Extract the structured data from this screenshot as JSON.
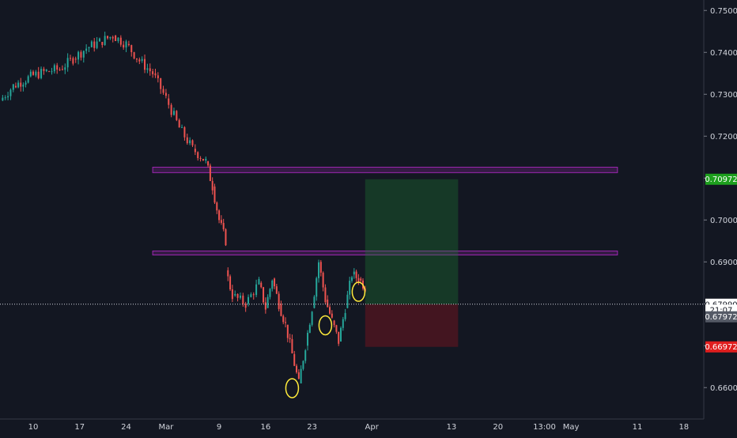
{
  "chart_data": {
    "type": "candlestick",
    "title": "",
    "xlabel": "",
    "ylabel": "",
    "ylim": [
      0.6525,
      0.7525
    ],
    "x_range": [
      "2020-02-05",
      "2020-05-21"
    ],
    "grid": false,
    "y_ticks": [
      "0.75000",
      "0.74000",
      "0.73000",
      "0.72000",
      "0.71000",
      "0.70000",
      "0.69000",
      "0.68000",
      "0.67000",
      "0.66000"
    ],
    "x_ticks": [
      {
        "label": "10",
        "date": "2020-02-10"
      },
      {
        "label": "17",
        "date": "2020-02-17"
      },
      {
        "label": "24",
        "date": "2020-02-24"
      },
      {
        "label": "Mar",
        "date": "2020-03-01"
      },
      {
        "label": "9",
        "date": "2020-03-09"
      },
      {
        "label": "16",
        "date": "2020-03-16"
      },
      {
        "label": "23",
        "date": "2020-03-23"
      },
      {
        "label": "Apr",
        "date": "2020-04-01"
      },
      {
        "label": "13",
        "date": "2020-04-13"
      },
      {
        "label": "20",
        "date": "2020-04-20"
      },
      {
        "label": "13:00",
        "date": "2020-04-27"
      },
      {
        "label": "May",
        "date": "2020-05-01"
      },
      {
        "label": "11",
        "date": "2020-05-11"
      },
      {
        "label": "18",
        "date": "2020-05-18"
      }
    ],
    "series": [
      {
        "values": [
          [
            "2020-02-05",
            0.7285,
            0.732
          ],
          [
            "2020-02-07",
            0.732,
            0.7345
          ],
          [
            "2020-02-10",
            0.7345,
            0.7355
          ],
          [
            "2020-02-12",
            0.7355,
            0.736
          ],
          [
            "2020-02-14",
            0.736,
            0.7385
          ],
          [
            "2020-02-16",
            0.7385,
            0.741
          ],
          [
            "2020-02-18",
            0.741,
            0.7425
          ],
          [
            "2020-02-20",
            0.7425,
            0.744
          ],
          [
            "2020-02-22",
            0.744,
            0.742
          ],
          [
            "2020-02-24",
            0.742,
            0.738
          ],
          [
            "2020-02-26",
            0.738,
            0.735
          ],
          [
            "2020-02-28",
            0.735,
            0.729
          ],
          [
            "2020-03-01",
            0.729,
            0.722
          ],
          [
            "2020-03-03",
            0.722,
            0.717
          ],
          [
            "2020-03-05",
            0.717,
            0.714
          ],
          [
            "2020-03-07",
            0.714,
            0.708
          ],
          [
            "2020-03-08",
            0.708,
            0.7
          ],
          [
            "2020-03-09",
            0.7,
            0.695
          ],
          [
            "2020-03-10",
            0.688,
            0.682
          ],
          [
            "2020-03-11",
            0.682,
            0.68
          ],
          [
            "2020-03-13",
            0.68,
            0.685
          ],
          [
            "2020-03-15",
            0.685,
            0.679
          ],
          [
            "2020-03-16",
            0.679,
            0.686
          ],
          [
            "2020-03-17",
            0.686,
            0.68
          ],
          [
            "2020-03-18",
            0.68,
            0.675
          ],
          [
            "2020-03-19",
            0.675,
            0.668
          ],
          [
            "2020-03-20",
            0.668,
            0.661
          ],
          [
            "2020-03-21",
            0.661,
            0.67
          ],
          [
            "2020-03-22",
            0.67,
            0.679
          ],
          [
            "2020-03-23",
            0.679,
            0.69
          ],
          [
            "2020-03-24",
            0.69,
            0.681
          ],
          [
            "2020-03-25",
            0.681,
            0.676
          ],
          [
            "2020-03-26",
            0.676,
            0.671
          ],
          [
            "2020-03-27",
            0.671,
            0.679
          ],
          [
            "2020-03-28",
            0.679,
            0.687
          ],
          [
            "2020-03-29",
            0.687,
            0.686
          ],
          [
            "2020-03-30",
            0.686,
            0.684
          ],
          [
            "2020-03-31",
            0.684,
            0.68
          ]
        ]
      }
    ],
    "zones": [
      {
        "type": "resistance",
        "y_low": 0.7113,
        "y_high": 0.7126,
        "x_start": "2020-02-28",
        "x_end": "2020-05-08"
      },
      {
        "type": "support",
        "y_low": 0.692,
        "y_high": 0.6926,
        "x_start": "2020-02-28",
        "x_end": "2020-05-08"
      }
    ],
    "position": {
      "entry": 0.6799,
      "target": 0.70972,
      "stop": 0.66972,
      "x_start": "2020-03-31",
      "x_end": "2020-04-14"
    },
    "marked_lows": [
      "2020-03-20",
      "2020-03-25",
      "2020-03-30"
    ],
    "current_price": 0.6799,
    "price_labels": [
      {
        "label": "0.70972",
        "y": 0.70972,
        "color": "#1ea01e"
      },
      {
        "label": "0.67990",
        "y": 0.6799,
        "color": "#ffffff"
      },
      {
        "label": "21:07",
        "y": 0.6785,
        "color": "#ffffff"
      },
      {
        "label": "0.67972",
        "y": 0.6769,
        "color": "#555a66"
      },
      {
        "label": "0.66972",
        "y": 0.66972,
        "color": "#e01e1e"
      }
    ]
  }
}
